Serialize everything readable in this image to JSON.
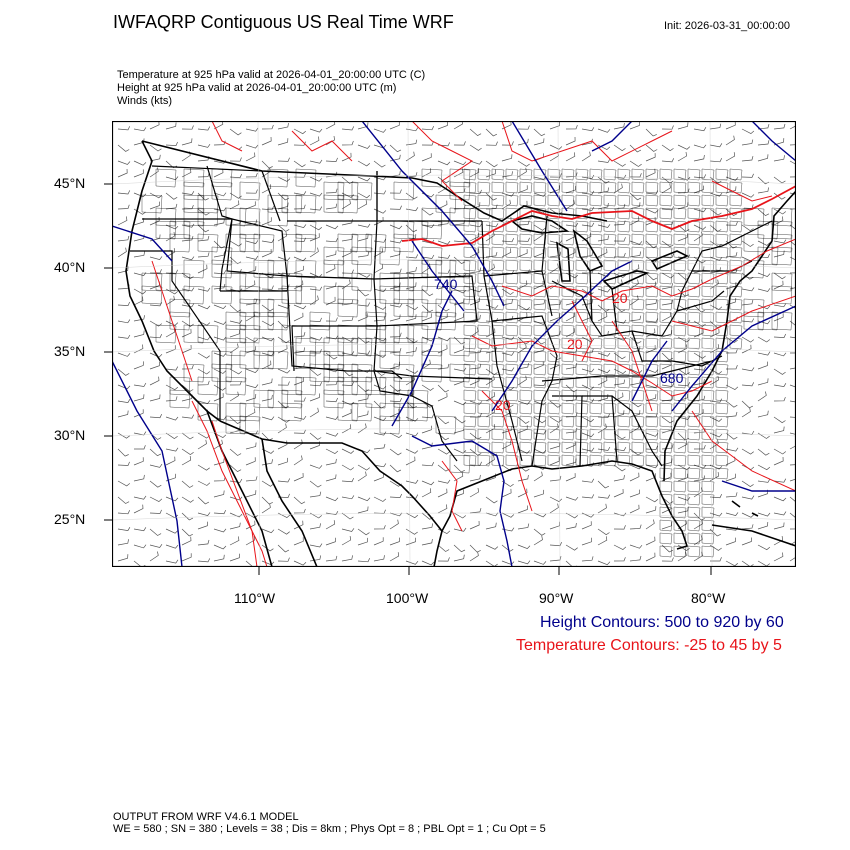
{
  "header": {
    "title": "IWFAQRP Contiguous US Real Time WRF",
    "init": "Init: 2026-03-31_00:00:00"
  },
  "fields": {
    "temperature": "Temperature at 925 hPa valid at 2026-04-01_20:00:00 UTC   (C)",
    "height": "Height at 925 hPa valid at 2026-04-01_20:00:00 UTC   (m)",
    "winds": "Winds   (kts)"
  },
  "axes": {
    "lat_labels": [
      "45°N",
      "40°N",
      "35°N",
      "30°N",
      "25°N"
    ],
    "lon_labels": [
      "110°W",
      "100°W",
      "90°W",
      "80°W"
    ]
  },
  "contour_labels": {
    "height_1": "740",
    "height_2": "680",
    "temp_1": "20",
    "temp_2": "20",
    "temp_3": "20"
  },
  "legend": {
    "height": "Height Contours: 500 to 920 by 60",
    "temperature": "Temperature Contours: -25 to 45 by 5"
  },
  "footer": {
    "line1": "OUTPUT FROM WRF V4.6.1 MODEL",
    "line2": "WE = 580 ; SN = 380 ; Levels = 38 ; Dis = 8km ; Phys Opt = 8 ; PBL Opt = 1 ; Cu Opt = 5"
  },
  "colors": {
    "height_contour": "#00008b",
    "temperature_contour": "#e8141a",
    "boundaries": "#000000",
    "wind_barbs": "#555555"
  }
}
